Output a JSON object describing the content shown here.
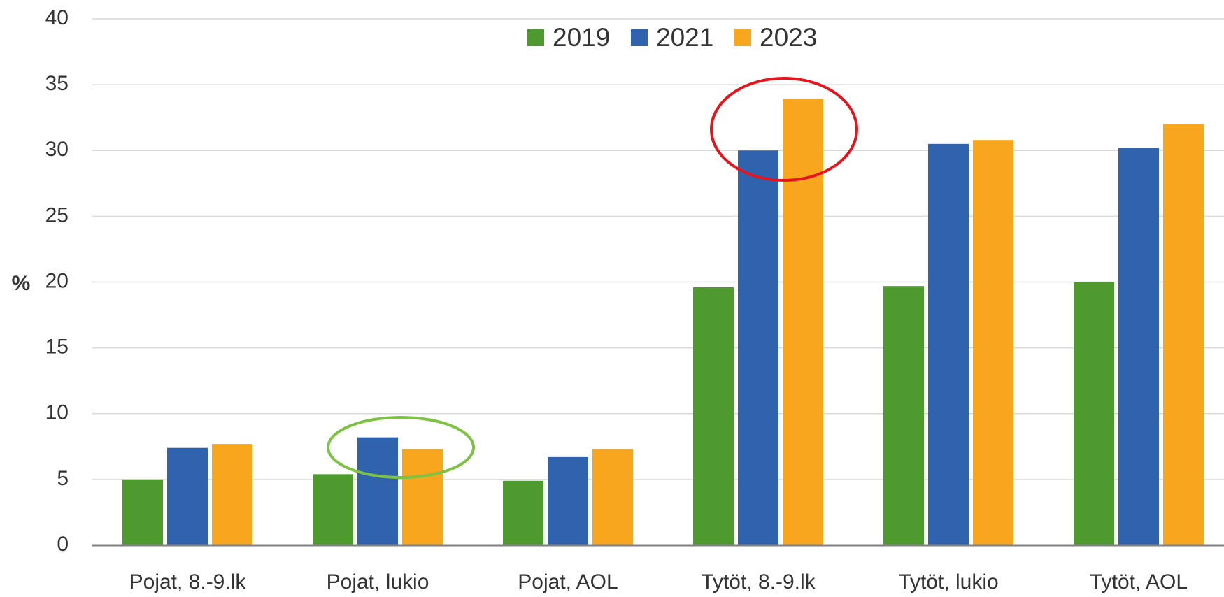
{
  "chart_data": {
    "type": "bar",
    "y_label": "%",
    "categories": [
      "Pojat, 8.-9.lk",
      "Pojat, lukio",
      "Pojat, AOL",
      "Tytöt, 8.-9.lk",
      "Tytöt, lukio",
      "Tytöt, AOL"
    ],
    "series": [
      {
        "name": "2019",
        "color": "#4e9a2f",
        "values": [
          5.0,
          5.4,
          4.9,
          19.6,
          19.7,
          20.0
        ]
      },
      {
        "name": "2021",
        "color": "#3063ae",
        "values": [
          7.4,
          8.2,
          6.7,
          30.0,
          30.5,
          30.2
        ]
      },
      {
        "name": "2023",
        "color": "#f7a61e",
        "values": [
          7.7,
          7.3,
          7.3,
          33.9,
          30.8,
          32.0
        ]
      }
    ],
    "ylim": [
      0,
      40
    ],
    "yticks": [
      0,
      5,
      10,
      15,
      20,
      25,
      30,
      35,
      40
    ],
    "grid": true,
    "legend": "top"
  }
}
